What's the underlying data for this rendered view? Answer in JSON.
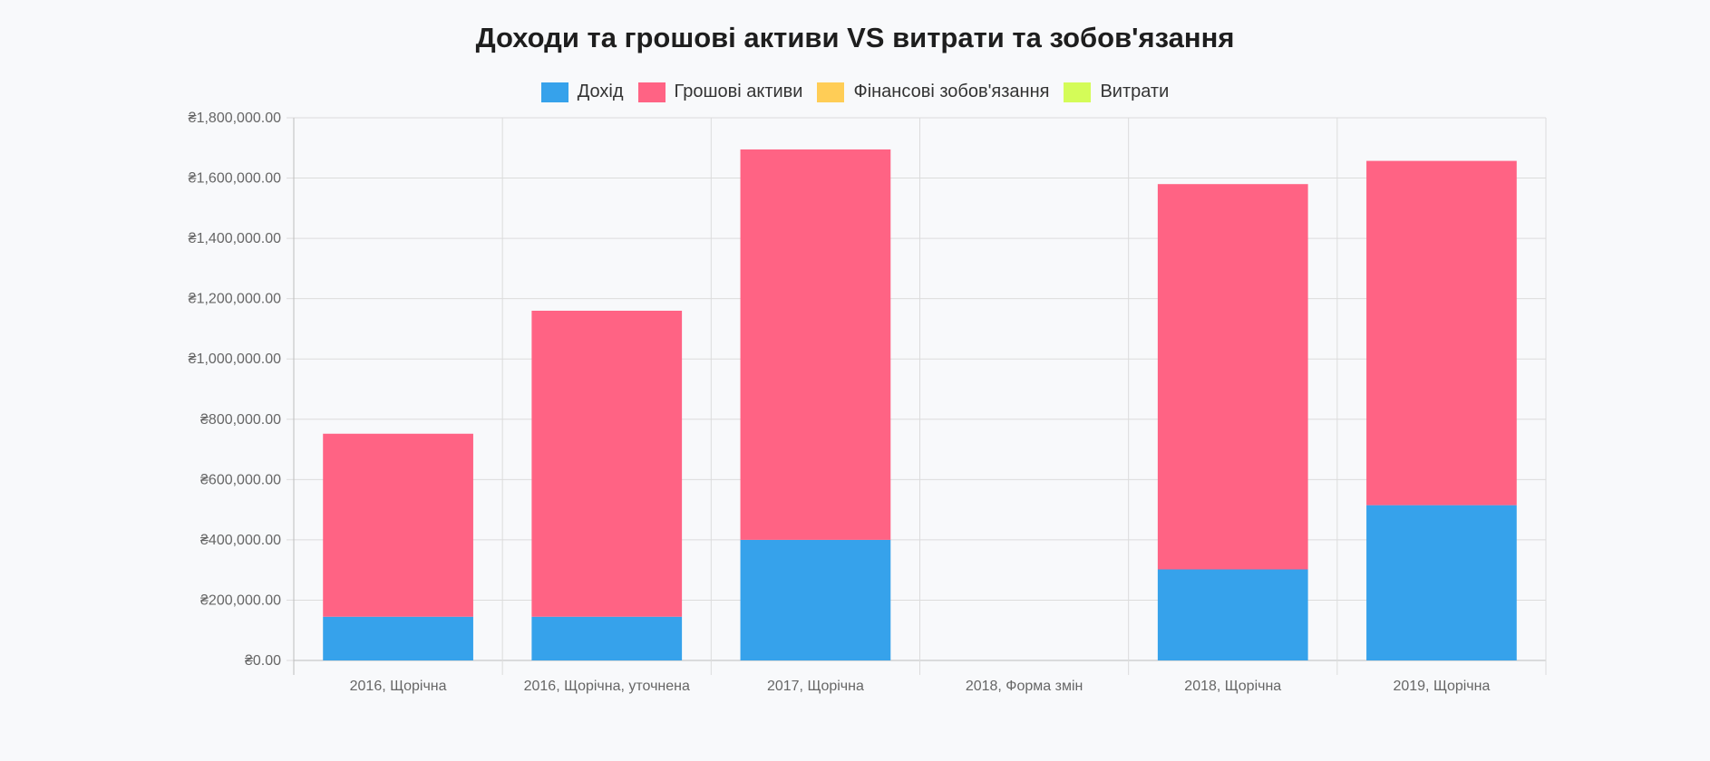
{
  "chart_data": {
    "type": "bar",
    "stacked": true,
    "title": "Доходи та грошові активи VS витрати та зобов'язання",
    "categories": [
      "2016, Щорічна",
      "2016, Щорічна, уточнена",
      "2017, Щорічна",
      "2018, Форма змін",
      "2018, Щорічна",
      "2019, Щорічна"
    ],
    "series": [
      {
        "name": "Дохід",
        "color": "#36a2eb",
        "values": [
          145000,
          145000,
          400000,
          0,
          302000,
          515000
        ]
      },
      {
        "name": "Грошові активи",
        "color": "#ff6384",
        "values": [
          607000,
          1015000,
          1295000,
          0,
          1278000,
          1142000
        ]
      },
      {
        "name": "Фінансові зобов'язання",
        "color": "#ffcd56",
        "values": [
          0,
          0,
          0,
          0,
          0,
          0
        ]
      },
      {
        "name": "Витрати",
        "color": "#d4fc58",
        "values": [
          0,
          0,
          0,
          0,
          0,
          0
        ]
      }
    ],
    "ylim": [
      0,
      1800000
    ],
    "yticks": [
      0,
      200000,
      400000,
      600000,
      800000,
      1000000,
      1200000,
      1400000,
      1600000,
      1800000
    ],
    "ytick_labels": [
      "₴0.00",
      "₴200,000.00",
      "₴400,000.00",
      "₴600,000.00",
      "₴800,000.00",
      "₴1,000,000.00",
      "₴1,200,000.00",
      "₴1,400,000.00",
      "₴1,600,000.00",
      "₴1,800,000.00"
    ],
    "grid": true,
    "legend_position": "top"
  }
}
